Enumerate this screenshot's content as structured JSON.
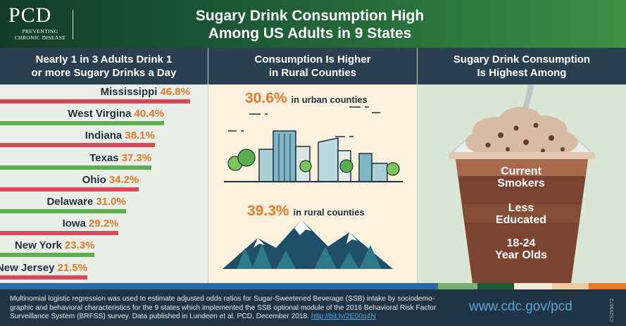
{
  "header": {
    "logo_main": "PCD",
    "logo_line1": "PREVENTING",
    "logo_line2": "CHRONIC DISEASE",
    "title_line1": "Sugary Drink Consumption High",
    "title_line2": "Among US Adults in 9 States"
  },
  "columns": {
    "col1_line1": "Nearly 1 in 3 Adults Drink 1",
    "col1_line2": "or more Sugary Drinks a Day",
    "col2_line1": "Consumption Is Higher",
    "col2_line2": "in Rural Counties",
    "col3_line1": "Sugary Drink Consumption",
    "col3_line2": "Is Highest Among"
  },
  "chart_data": {
    "type": "bar",
    "orientation": "horizontal",
    "categories": [
      "Mississippi",
      "West Virgina",
      "Indiana",
      "Texas",
      "Ohio",
      "Delaware",
      "Iowa",
      "New York",
      "New Jersey"
    ],
    "values": [
      46.8,
      40.4,
      38.1,
      37.3,
      34.2,
      31.0,
      29.2,
      23.3,
      21.5
    ],
    "value_labels": [
      "46.8%",
      "40.4%",
      "38.1%",
      "37.3%",
      "34.2%",
      "31.0%",
      "29.2%",
      "23.3%",
      "21.5%"
    ],
    "bar_colors": [
      "#d9485a",
      "#5cae4f",
      "#d9485a",
      "#5cae4f",
      "#d9485a",
      "#5cae4f",
      "#d9485a",
      "#5cae4f",
      "#d9485a"
    ],
    "unit": "%"
  },
  "rural_urban": {
    "urban_value": "30.6%",
    "urban_label": "in urban counties",
    "rural_value": "39.3%",
    "rural_label": "in rural counties"
  },
  "groups": {
    "g1_line1": "Current",
    "g1_line2": "Smokers",
    "g2_line1": "Less",
    "g2_line2": "Educated",
    "g3_line1": "18-24",
    "g3_line2": "Year Olds"
  },
  "footer": {
    "text": "Multinomial logistic regression was used to estimate adjusted odds ratios for Sugar-Sweetened Beverage (SSB) intake by sociodemo-graphic and behavioral characteristics for the 9 states which implemented the SSB optional module of the 2016 Behavioral Risk Factor Surveillance System (BRFSS) survey. Data published in Lundeen et al. PCD, December 2018.",
    "link": "http://bit.ly/2E00q4N",
    "url": "www.cdc.gov/pcd",
    "doc_id": "CS295672"
  },
  "colors": {
    "accent_orange": "#e8792b",
    "bar_red": "#d9485a",
    "bar_green": "#5cae4f",
    "header_green": "#1d5a36",
    "navy": "#1f3444"
  }
}
